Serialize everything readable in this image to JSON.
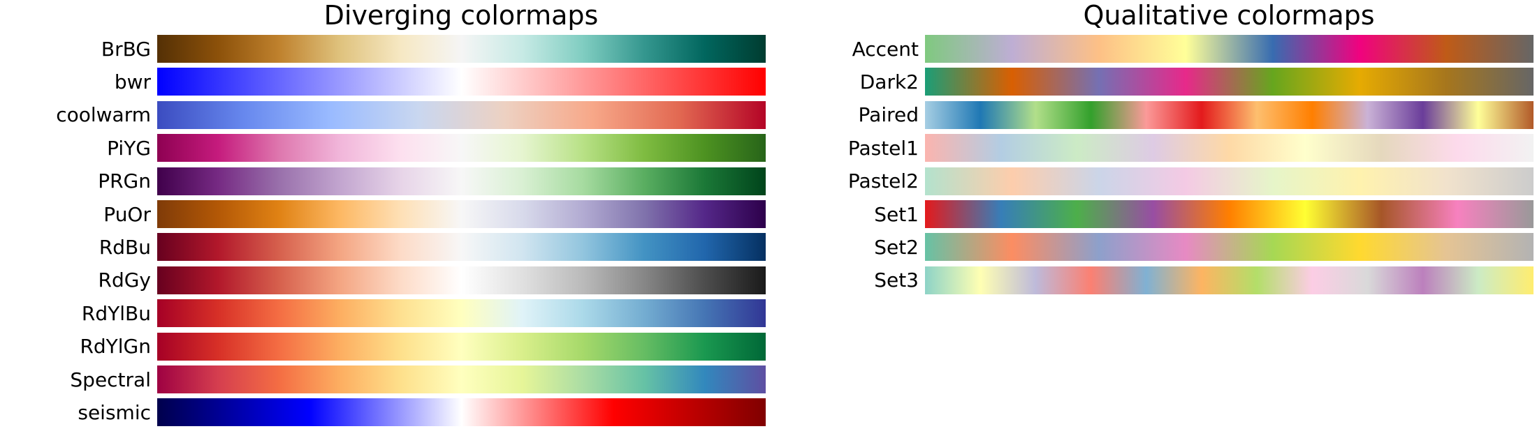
{
  "chart_data": [
    {
      "type": "colormap",
      "title": "Diverging colormaps",
      "colormaps": [
        {
          "name": "BrBG",
          "stops": [
            "#543005",
            "#8c510a",
            "#bf812d",
            "#dfc27d",
            "#f6e8c3",
            "#f5f5f5",
            "#c7eae5",
            "#80cdc1",
            "#35978f",
            "#01665e",
            "#003c30"
          ]
        },
        {
          "name": "bwr",
          "stops": [
            "#0000ff",
            "#8080ff",
            "#ffffff",
            "#ff8080",
            "#ff0000"
          ]
        },
        {
          "name": "coolwarm",
          "stops": [
            "#3b4cc0",
            "#6788ee",
            "#9abbff",
            "#c9d7f0",
            "#edd1c2",
            "#f7a889",
            "#e26952",
            "#b40426"
          ]
        },
        {
          "name": "PiYG",
          "stops": [
            "#8e0152",
            "#c51b7d",
            "#de77ae",
            "#f1b6da",
            "#fde0ef",
            "#f7f7f7",
            "#e6f5d0",
            "#b8e186",
            "#7fbc41",
            "#4d9221",
            "#276419"
          ]
        },
        {
          "name": "PRGn",
          "stops": [
            "#40004b",
            "#762a83",
            "#9970ab",
            "#c2a5cf",
            "#e7d4e8",
            "#f7f7f7",
            "#d9f0d3",
            "#a6dba0",
            "#5aae61",
            "#1b7837",
            "#00441b"
          ]
        },
        {
          "name": "PuOr",
          "stops": [
            "#7f3b08",
            "#b35806",
            "#e08214",
            "#fdb863",
            "#fee0b6",
            "#f7f7f7",
            "#d8daeb",
            "#b2abd2",
            "#8073ac",
            "#542788",
            "#2d004b"
          ]
        },
        {
          "name": "RdBu",
          "stops": [
            "#67001f",
            "#b2182b",
            "#d6604d",
            "#f4a582",
            "#fddbc7",
            "#f7f7f7",
            "#d1e5f0",
            "#92c5de",
            "#4393c3",
            "#2166ac",
            "#053061"
          ]
        },
        {
          "name": "RdGy",
          "stops": [
            "#67001f",
            "#b2182b",
            "#d6604d",
            "#f4a582",
            "#fddbc7",
            "#ffffff",
            "#e0e0e0",
            "#bababa",
            "#878787",
            "#4d4d4d",
            "#1a1a1a"
          ]
        },
        {
          "name": "RdYlBu",
          "stops": [
            "#a50026",
            "#d73027",
            "#f46d43",
            "#fdae61",
            "#fee090",
            "#ffffbf",
            "#e0f3f8",
            "#abd9e9",
            "#74add1",
            "#4575b4",
            "#313695"
          ]
        },
        {
          "name": "RdYlGn",
          "stops": [
            "#a50026",
            "#d73027",
            "#f46d43",
            "#fdae61",
            "#fee08b",
            "#ffffbf",
            "#d9ef8b",
            "#a6d96a",
            "#66bd63",
            "#1a9850",
            "#006837"
          ]
        },
        {
          "name": "Spectral",
          "stops": [
            "#9e0142",
            "#d53e4f",
            "#f46d43",
            "#fdae61",
            "#fee08b",
            "#ffffbf",
            "#e6f598",
            "#abdda4",
            "#66c2a5",
            "#3288bd",
            "#5e4fa2"
          ]
        },
        {
          "name": "seismic",
          "stops": [
            "#00004c",
            "#0000ff",
            "#ffffff",
            "#ff0000",
            "#800000"
          ]
        }
      ]
    },
    {
      "type": "colormap",
      "title": "Qualitative colormaps",
      "colormaps": [
        {
          "name": "Accent",
          "stops": [
            "#7fc97f",
            "#beaed4",
            "#fdc086",
            "#ffff99",
            "#386cb0",
            "#f0027f",
            "#bf5b17",
            "#666666"
          ]
        },
        {
          "name": "Dark2",
          "stops": [
            "#1b9e77",
            "#d95f02",
            "#7570b3",
            "#e7298a",
            "#66a61e",
            "#e6ab02",
            "#a6761d",
            "#666666"
          ]
        },
        {
          "name": "Paired",
          "stops": [
            "#a6cee3",
            "#1f78b4",
            "#b2df8a",
            "#33a02c",
            "#fb9a99",
            "#e31a1c",
            "#fdbf6f",
            "#ff7f00",
            "#cab2d6",
            "#6a3d9a",
            "#ffff99",
            "#b15928"
          ]
        },
        {
          "name": "Pastel1",
          "stops": [
            "#fbb4ae",
            "#b3cde3",
            "#ccebc5",
            "#decbe4",
            "#fed9a6",
            "#ffffcc",
            "#e5d8bd",
            "#fddaec",
            "#f2f2f2"
          ]
        },
        {
          "name": "Pastel2",
          "stops": [
            "#b3e2cd",
            "#fdcdac",
            "#cbd5e8",
            "#f4cae4",
            "#e6f5c9",
            "#fff2ae",
            "#f1e2cc",
            "#cccccc"
          ]
        },
        {
          "name": "Set1",
          "stops": [
            "#e41a1c",
            "#377eb8",
            "#4daf4a",
            "#984ea3",
            "#ff7f00",
            "#ffff33",
            "#a65628",
            "#f781bf",
            "#999999"
          ]
        },
        {
          "name": "Set2",
          "stops": [
            "#66c2a5",
            "#fc8d62",
            "#8da0cb",
            "#e78ac3",
            "#a6d854",
            "#ffd92f",
            "#e5c494",
            "#b3b3b3"
          ]
        },
        {
          "name": "Set3",
          "stops": [
            "#8dd3c7",
            "#ffffb3",
            "#bebada",
            "#fb8072",
            "#80b1d3",
            "#fdb462",
            "#b3de69",
            "#fccde5",
            "#d9d9d9",
            "#bc80bd",
            "#ccebc5",
            "#ffed6f"
          ]
        }
      ]
    }
  ]
}
